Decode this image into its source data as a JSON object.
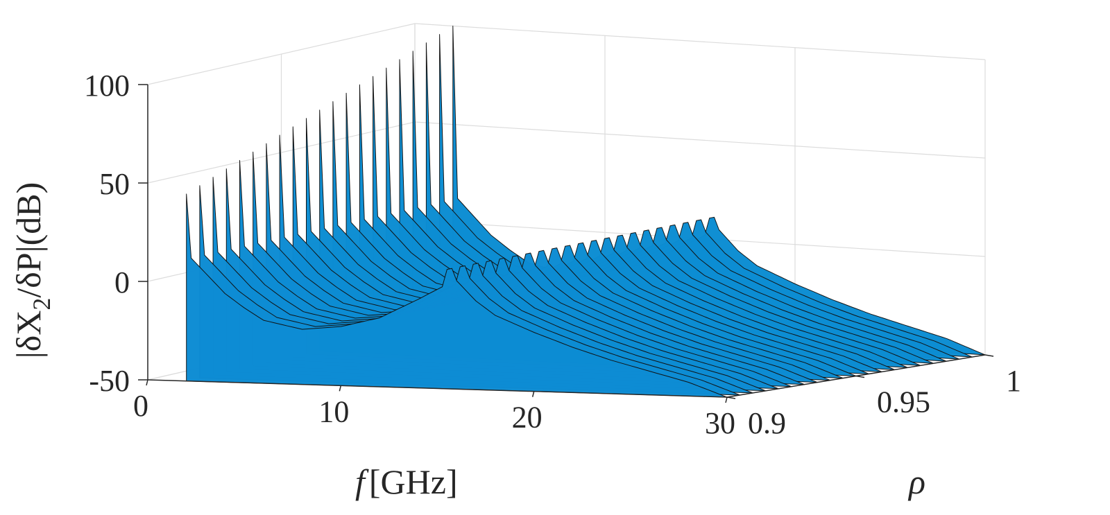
{
  "chart_data": {
    "type": "surface",
    "title": "",
    "xlabel_prefix": "f",
    "xlabel_unit": "[GHz]",
    "ylabel": "ρ",
    "zlabel": "|δX",
    "zlabel_sub": "2",
    "zlabel_rest": "/δP|(dB)",
    "xlim": [
      0,
      30
    ],
    "ylim": [
      0.9,
      1
    ],
    "zlim": [
      -50,
      100
    ],
    "xticks": [
      "0",
      "10",
      "20",
      "30"
    ],
    "yticks": [
      "0.9",
      "0.95",
      "1"
    ],
    "zticks": [
      "-50",
      "0",
      "50",
      "100"
    ],
    "grid": true,
    "colormap": "parula",
    "rho_values": [
      0.9,
      0.905,
      0.91,
      0.915,
      0.92,
      0.925,
      0.93,
      0.935,
      0.94,
      0.945,
      0.95,
      0.955,
      0.96,
      0.965,
      0.97,
      0.975,
      0.98,
      0.985,
      0.99,
      0.995,
      1.0
    ],
    "front_strip_profile": {
      "f": [
        2,
        2.5,
        3,
        4,
        5,
        6,
        8,
        10,
        12,
        14,
        15.3,
        15.6,
        16,
        17,
        18,
        20,
        22,
        24,
        26,
        28,
        30
      ],
      "z": [
        15,
        10,
        5,
        -5,
        -12,
        -18,
        -22,
        -20,
        -15,
        -5,
        2,
        15,
        5,
        -5,
        -12,
        -20,
        -27,
        -33,
        -38,
        -43,
        -50
      ]
    },
    "resonance_peak_z_at_low_f": {
      "rho": [
        0.9,
        1.0
      ],
      "z": [
        45,
        100
      ]
    },
    "notes_visible": []
  }
}
